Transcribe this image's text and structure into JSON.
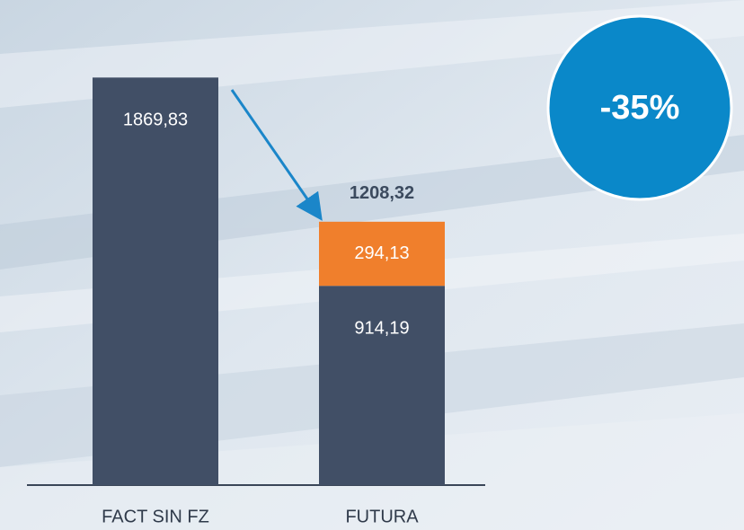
{
  "chart_data": {
    "type": "stacked_bar",
    "categories": [
      "FACT SIN FZ",
      "FUTURA"
    ],
    "series": [
      {
        "color": "#414f66",
        "values": [
          1869.83,
          914.19
        ],
        "value_labels": [
          "1869,83",
          "914,19"
        ]
      },
      {
        "color": "#f07f2c",
        "values": [
          null,
          294.13
        ],
        "value_labels": [
          null,
          "294,13"
        ]
      }
    ],
    "totals": [
      null,
      1208.32
    ],
    "total_labels": [
      null,
      "1208,32"
    ],
    "annotation": "-35%",
    "annotation_color": "#0a88c9",
    "ylim": [
      0,
      1900
    ]
  }
}
